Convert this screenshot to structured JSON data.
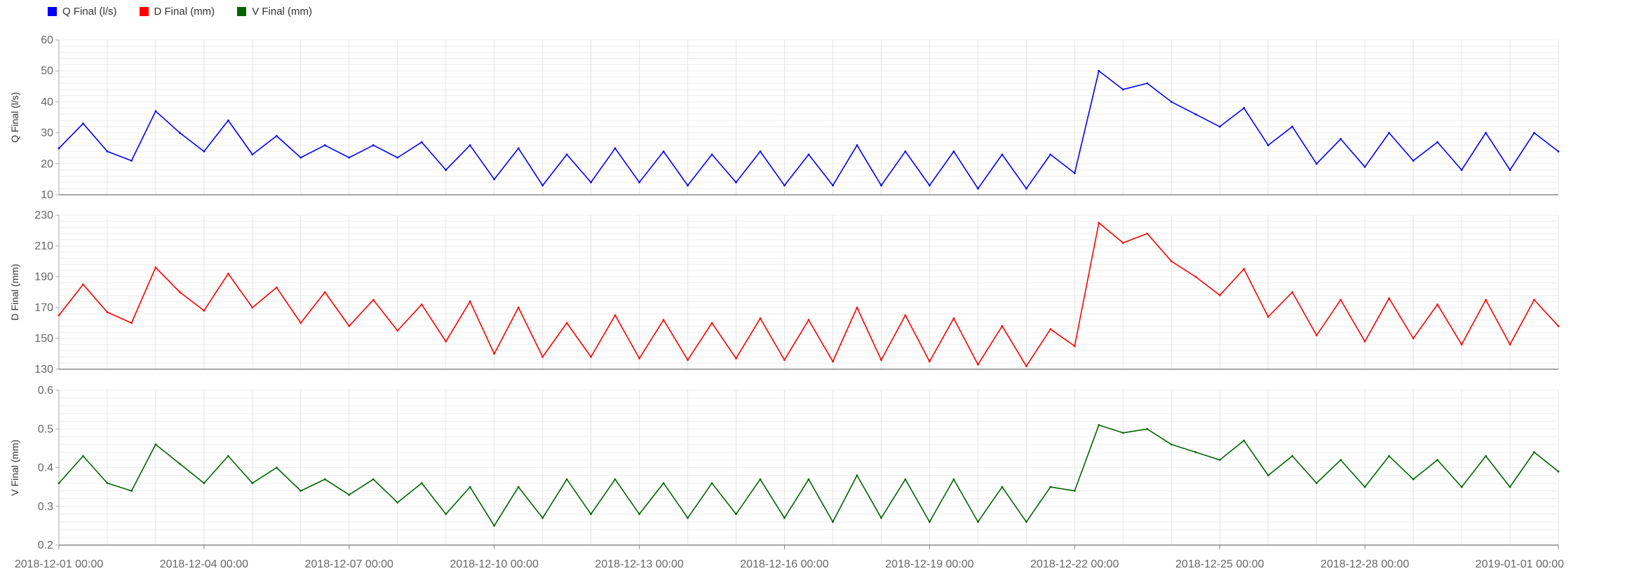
{
  "legend": [
    {
      "label": "Q Final (l/s)",
      "color": "#0000ff"
    },
    {
      "label": "D Final (mm)",
      "color": "#ff0000"
    },
    {
      "label": "V Final (mm)",
      "color": "#006400"
    }
  ],
  "chart_data": [
    {
      "type": "line",
      "series_name": "Q Final (l/s)",
      "ylabel": "Q Final (l/s)",
      "color": "#0000ff",
      "ylim": [
        10,
        60
      ],
      "yticks": [
        "60",
        "50",
        "40",
        "30",
        "20",
        "10"
      ],
      "x_range": [
        "2018-12-01 00:00",
        "2019-01-01 00:00"
      ],
      "x": [
        "2018-12-01 00:00",
        "2018-12-01 12:00",
        "2018-12-02 00:00",
        "2018-12-02 12:00",
        "2018-12-03 00:00",
        "2018-12-03 12:00",
        "2018-12-04 00:00",
        "2018-12-04 12:00",
        "2018-12-05 00:00",
        "2018-12-05 12:00",
        "2018-12-06 00:00",
        "2018-12-06 12:00",
        "2018-12-07 00:00",
        "2018-12-07 12:00",
        "2018-12-08 00:00",
        "2018-12-08 12:00",
        "2018-12-09 00:00",
        "2018-12-09 12:00",
        "2018-12-10 00:00",
        "2018-12-10 12:00",
        "2018-12-11 00:00",
        "2018-12-11 12:00",
        "2018-12-12 00:00",
        "2018-12-12 12:00",
        "2018-12-13 00:00",
        "2018-12-13 12:00",
        "2018-12-14 00:00",
        "2018-12-14 12:00",
        "2018-12-15 00:00",
        "2018-12-15 12:00",
        "2018-12-16 00:00",
        "2018-12-16 12:00",
        "2018-12-17 00:00",
        "2018-12-17 12:00",
        "2018-12-18 00:00",
        "2018-12-18 12:00",
        "2018-12-19 00:00",
        "2018-12-19 12:00",
        "2018-12-20 00:00",
        "2018-12-20 12:00",
        "2018-12-21 00:00",
        "2018-12-21 12:00",
        "2018-12-22 00:00",
        "2018-12-22 12:00",
        "2018-12-23 00:00",
        "2018-12-23 12:00",
        "2018-12-24 00:00",
        "2018-12-24 12:00",
        "2018-12-25 00:00",
        "2018-12-25 12:00",
        "2018-12-26 00:00",
        "2018-12-26 12:00",
        "2018-12-27 00:00",
        "2018-12-27 12:00",
        "2018-12-28 00:00",
        "2018-12-28 12:00",
        "2018-12-29 00:00",
        "2018-12-29 12:00",
        "2018-12-30 00:00",
        "2018-12-30 12:00",
        "2018-12-31 00:00",
        "2018-12-31 12:00",
        "2019-01-01 00:00"
      ],
      "values": [
        25,
        33,
        24,
        21,
        37,
        30,
        24,
        34,
        23,
        29,
        22,
        26,
        22,
        26,
        22,
        27,
        18,
        26,
        15,
        25,
        13,
        23,
        14,
        25,
        14,
        24,
        13,
        23,
        14,
        24,
        13,
        23,
        13,
        26,
        13,
        24,
        13,
        24,
        12,
        23,
        12,
        23,
        17,
        50,
        44,
        46,
        40,
        36,
        32,
        38,
        26,
        32,
        20,
        28,
        19,
        30,
        21,
        27,
        18,
        30,
        18,
        30,
        24
      ]
    },
    {
      "type": "line",
      "series_name": "D Final (mm)",
      "ylabel": "D Final (mm)",
      "color": "#ff0000",
      "ylim": [
        130,
        230
      ],
      "yticks": [
        "230",
        "210",
        "190",
        "170",
        "150",
        "130"
      ],
      "x_range": [
        "2018-12-01 00:00",
        "2019-01-01 00:00"
      ],
      "x": [
        "2018-12-01 00:00",
        "2018-12-01 12:00",
        "2018-12-02 00:00",
        "2018-12-02 12:00",
        "2018-12-03 00:00",
        "2018-12-03 12:00",
        "2018-12-04 00:00",
        "2018-12-04 12:00",
        "2018-12-05 00:00",
        "2018-12-05 12:00",
        "2018-12-06 00:00",
        "2018-12-06 12:00",
        "2018-12-07 00:00",
        "2018-12-07 12:00",
        "2018-12-08 00:00",
        "2018-12-08 12:00",
        "2018-12-09 00:00",
        "2018-12-09 12:00",
        "2018-12-10 00:00",
        "2018-12-10 12:00",
        "2018-12-11 00:00",
        "2018-12-11 12:00",
        "2018-12-12 00:00",
        "2018-12-12 12:00",
        "2018-12-13 00:00",
        "2018-12-13 12:00",
        "2018-12-14 00:00",
        "2018-12-14 12:00",
        "2018-12-15 00:00",
        "2018-12-15 12:00",
        "2018-12-16 00:00",
        "2018-12-16 12:00",
        "2018-12-17 00:00",
        "2018-12-17 12:00",
        "2018-12-18 00:00",
        "2018-12-18 12:00",
        "2018-12-19 00:00",
        "2018-12-19 12:00",
        "2018-12-20 00:00",
        "2018-12-20 12:00",
        "2018-12-21 00:00",
        "2018-12-21 12:00",
        "2018-12-22 00:00",
        "2018-12-22 12:00",
        "2018-12-23 00:00",
        "2018-12-23 12:00",
        "2018-12-24 00:00",
        "2018-12-24 12:00",
        "2018-12-25 00:00",
        "2018-12-25 12:00",
        "2018-12-26 00:00",
        "2018-12-26 12:00",
        "2018-12-27 00:00",
        "2018-12-27 12:00",
        "2018-12-28 00:00",
        "2018-12-28 12:00",
        "2018-12-29 00:00",
        "2018-12-29 12:00",
        "2018-12-30 00:00",
        "2018-12-30 12:00",
        "2018-12-31 00:00",
        "2018-12-31 12:00",
        "2019-01-01 00:00"
      ],
      "values": [
        165,
        185,
        167,
        160,
        196,
        180,
        168,
        192,
        170,
        183,
        160,
        180,
        158,
        175,
        155,
        172,
        148,
        174,
        140,
        170,
        138,
        160,
        138,
        165,
        137,
        162,
        136,
        160,
        137,
        163,
        136,
        162,
        135,
        170,
        136,
        165,
        135,
        163,
        133,
        158,
        132,
        156,
        145,
        225,
        212,
        218,
        200,
        190,
        178,
        195,
        164,
        180,
        152,
        175,
        148,
        176,
        150,
        172,
        146,
        175,
        146,
        175,
        158
      ]
    },
    {
      "type": "line",
      "series_name": "V Final (mm)",
      "ylabel": "V Final (mm)",
      "color": "#006400",
      "ylim": [
        0.2,
        0.6
      ],
      "yticks": [
        "0.6",
        "0.5",
        "0.4",
        "0.3",
        "0.2"
      ],
      "x_range": [
        "2018-12-01 00:00",
        "2019-01-01 00:00"
      ],
      "x": [
        "2018-12-01 00:00",
        "2018-12-01 12:00",
        "2018-12-02 00:00",
        "2018-12-02 12:00",
        "2018-12-03 00:00",
        "2018-12-03 12:00",
        "2018-12-04 00:00",
        "2018-12-04 12:00",
        "2018-12-05 00:00",
        "2018-12-05 12:00",
        "2018-12-06 00:00",
        "2018-12-06 12:00",
        "2018-12-07 00:00",
        "2018-12-07 12:00",
        "2018-12-08 00:00",
        "2018-12-08 12:00",
        "2018-12-09 00:00",
        "2018-12-09 12:00",
        "2018-12-10 00:00",
        "2018-12-10 12:00",
        "2018-12-11 00:00",
        "2018-12-11 12:00",
        "2018-12-12 00:00",
        "2018-12-12 12:00",
        "2018-12-13 00:00",
        "2018-12-13 12:00",
        "2018-12-14 00:00",
        "2018-12-14 12:00",
        "2018-12-15 00:00",
        "2018-12-15 12:00",
        "2018-12-16 00:00",
        "2018-12-16 12:00",
        "2018-12-17 00:00",
        "2018-12-17 12:00",
        "2018-12-18 00:00",
        "2018-12-18 12:00",
        "2018-12-19 00:00",
        "2018-12-19 12:00",
        "2018-12-20 00:00",
        "2018-12-20 12:00",
        "2018-12-21 00:00",
        "2018-12-21 12:00",
        "2018-12-22 00:00",
        "2018-12-22 12:00",
        "2018-12-23 00:00",
        "2018-12-23 12:00",
        "2018-12-24 00:00",
        "2018-12-24 12:00",
        "2018-12-25 00:00",
        "2018-12-25 12:00",
        "2018-12-26 00:00",
        "2018-12-26 12:00",
        "2018-12-27 00:00",
        "2018-12-27 12:00",
        "2018-12-28 00:00",
        "2018-12-28 12:00",
        "2018-12-29 00:00",
        "2018-12-29 12:00",
        "2018-12-30 00:00",
        "2018-12-30 12:00",
        "2018-12-31 00:00",
        "2018-12-31 12:00",
        "2019-01-01 00:00"
      ],
      "values": [
        0.36,
        0.43,
        0.36,
        0.34,
        0.46,
        0.41,
        0.36,
        0.43,
        0.36,
        0.4,
        0.34,
        0.37,
        0.33,
        0.37,
        0.31,
        0.36,
        0.28,
        0.35,
        0.25,
        0.35,
        0.27,
        0.37,
        0.28,
        0.37,
        0.28,
        0.36,
        0.27,
        0.36,
        0.28,
        0.37,
        0.27,
        0.37,
        0.26,
        0.38,
        0.27,
        0.37,
        0.26,
        0.37,
        0.26,
        0.35,
        0.26,
        0.35,
        0.34,
        0.51,
        0.49,
        0.5,
        0.46,
        0.44,
        0.42,
        0.47,
        0.38,
        0.43,
        0.36,
        0.42,
        0.35,
        0.43,
        0.37,
        0.42,
        0.35,
        0.43,
        0.35,
        0.44,
        0.39
      ]
    }
  ],
  "x_tick_labels": [
    "2018-12-01 00:00",
    "2018-12-04 00:00",
    "2018-12-07 00:00",
    "2018-12-10 00:00",
    "2018-12-13 00:00",
    "2018-12-16 00:00",
    "2018-12-19 00:00",
    "2018-12-22 00:00",
    "2018-12-25 00:00",
    "2018-12-28 00:00",
    "2019-01-01 00:00"
  ]
}
